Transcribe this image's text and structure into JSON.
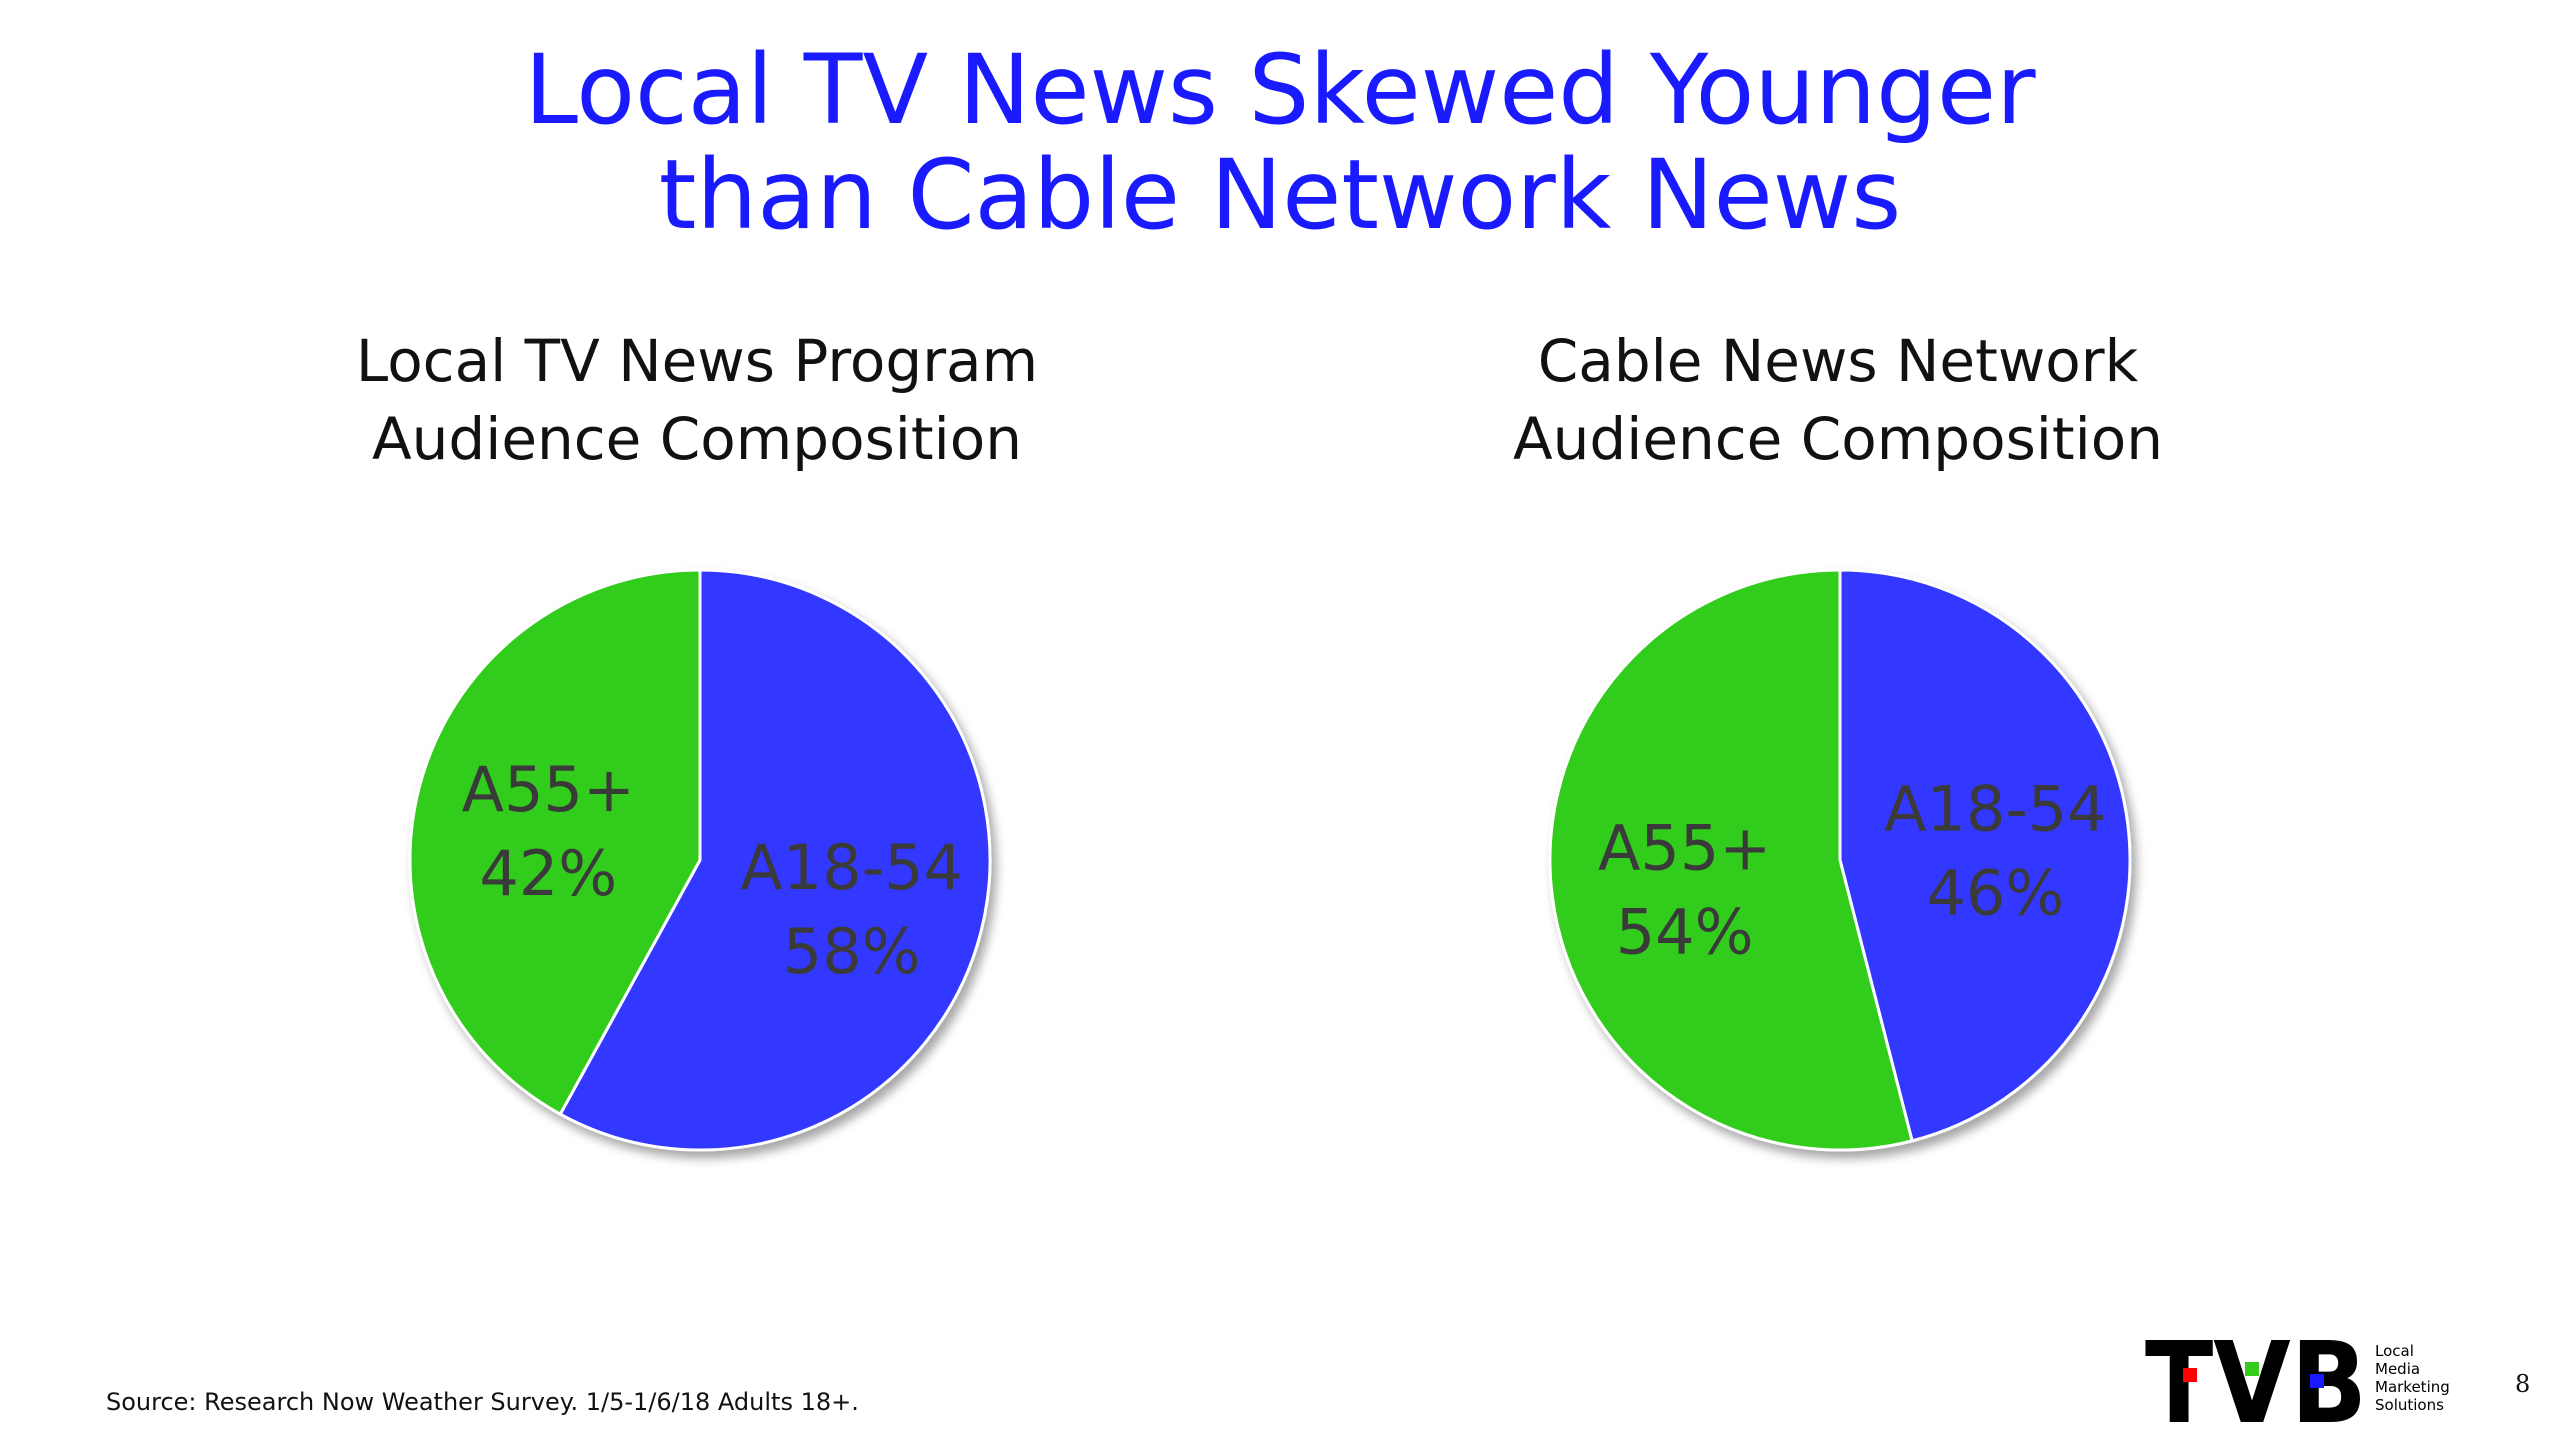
{
  "title": {
    "line1": "Local TV News Skewed Younger",
    "line2": "than Cable Network News"
  },
  "colors": {
    "a18_54": "#3338ff",
    "a55_plus": "#33cc1a",
    "title": "#1a1aff",
    "bar_red": "#ff0000",
    "bar_green": "#33cc1a",
    "bar_blue": "#1a1aff"
  },
  "chart_data": [
    {
      "type": "pie",
      "title_lines": [
        "Local TV News Program",
        "Audience Composition"
      ],
      "slices": [
        {
          "label": "A18-54",
          "value": 58,
          "value_label": "58%"
        },
        {
          "label": "A55+",
          "value": 42,
          "value_label": "42%"
        }
      ]
    },
    {
      "type": "pie",
      "title_lines": [
        "Cable News Network",
        "Audience Composition"
      ],
      "slices": [
        {
          "label": "A18-54",
          "value": 46,
          "value_label": "46%"
        },
        {
          "label": "A55+",
          "value": 54,
          "value_label": "54%"
        }
      ]
    }
  ],
  "source": "Source: Research Now Weather Survey. 1/5-1/6/18 Adults 18+.",
  "logo": {
    "mark": "TVB",
    "tagline": [
      "Local",
      "Media",
      "Marketing",
      "Solutions"
    ]
  },
  "page_number": "8"
}
